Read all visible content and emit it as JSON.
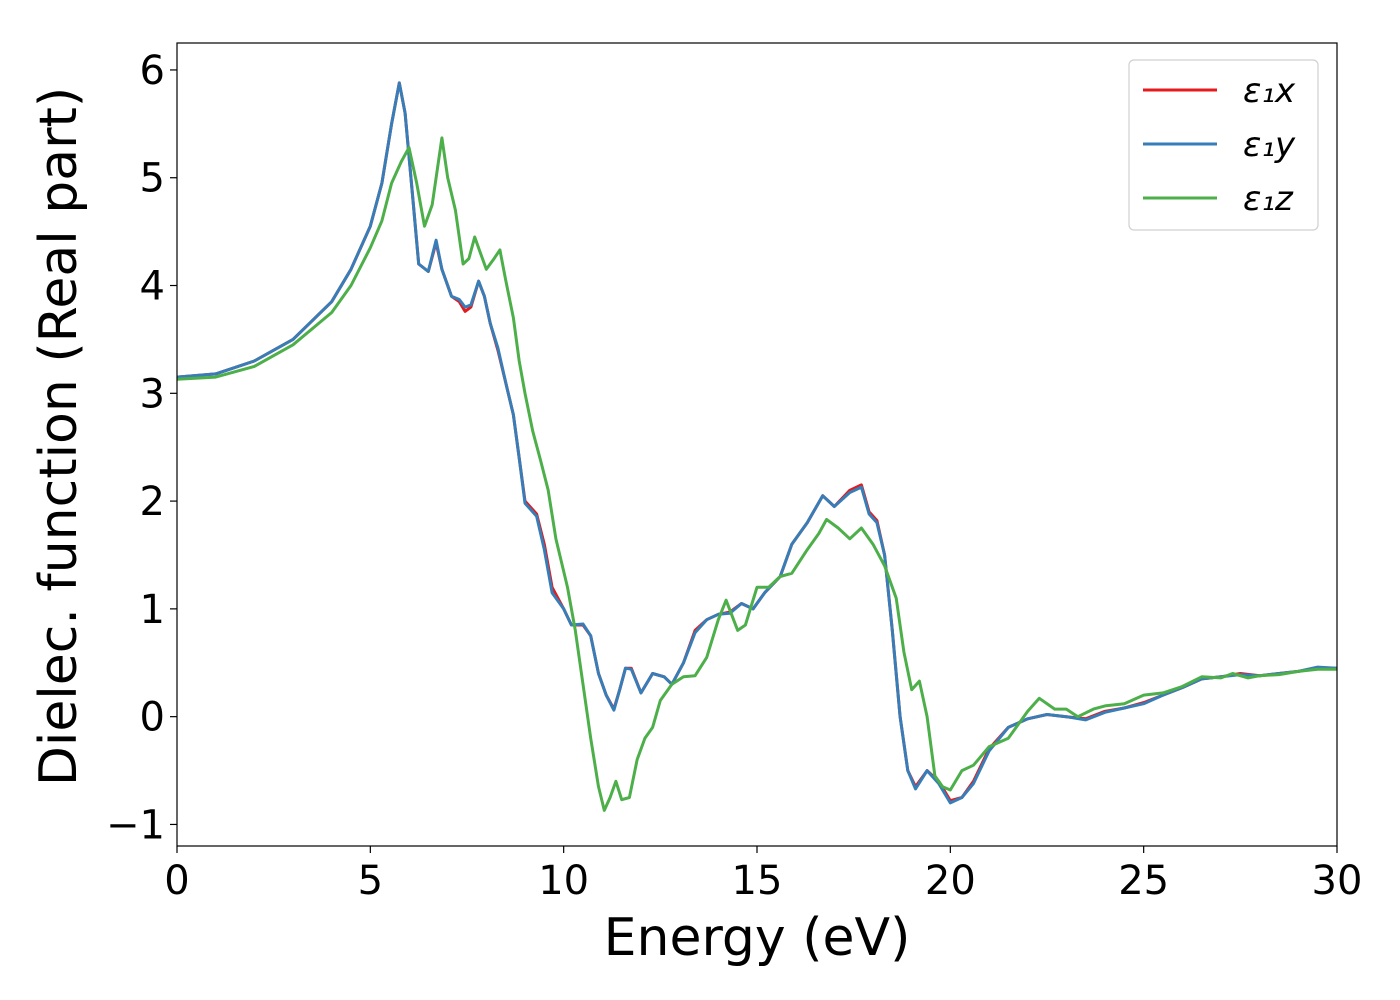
{
  "chart_data": {
    "type": "line",
    "xlabel": "Energy (eV)",
    "ylabel": "Dielec. function (Real part)",
    "xlim": [
      0,
      30
    ],
    "ylim": [
      -1.2,
      6.25
    ],
    "xticks": [
      0,
      5,
      10,
      15,
      20,
      25,
      30
    ],
    "xtick_labels": [
      "0",
      "5",
      "10",
      "15",
      "20",
      "25",
      "30"
    ],
    "yticks": [
      -1,
      0,
      1,
      2,
      3,
      4,
      5,
      6
    ],
    "ytick_labels": [
      "−1",
      "0",
      "1",
      "2",
      "3",
      "4",
      "5",
      "6"
    ],
    "grid": false,
    "legend_position": "top-right",
    "series": [
      {
        "name": "ε₁x",
        "color": "#e41a1c",
        "points": [
          [
            0,
            3.15
          ],
          [
            1,
            3.18
          ],
          [
            2,
            3.3
          ],
          [
            3,
            3.5
          ],
          [
            4,
            3.85
          ],
          [
            4.5,
            4.15
          ],
          [
            5,
            4.55
          ],
          [
            5.3,
            4.95
          ],
          [
            5.55,
            5.5
          ],
          [
            5.75,
            5.88
          ],
          [
            5.9,
            5.6
          ],
          [
            6.1,
            4.8
          ],
          [
            6.25,
            4.2
          ],
          [
            6.5,
            4.13
          ],
          [
            6.7,
            4.4
          ],
          [
            6.85,
            4.15
          ],
          [
            7.1,
            3.9
          ],
          [
            7.3,
            3.85
          ],
          [
            7.45,
            3.76
          ],
          [
            7.6,
            3.8
          ],
          [
            7.8,
            4.04
          ],
          [
            7.95,
            3.9
          ],
          [
            8.1,
            3.65
          ],
          [
            8.3,
            3.4
          ],
          [
            8.5,
            3.1
          ],
          [
            8.7,
            2.8
          ],
          [
            8.85,
            2.4
          ],
          [
            9.0,
            2.0
          ],
          [
            9.3,
            1.88
          ],
          [
            9.5,
            1.6
          ],
          [
            9.7,
            1.2
          ],
          [
            10.0,
            1.0
          ],
          [
            10.2,
            0.85
          ],
          [
            10.5,
            0.85
          ],
          [
            10.7,
            0.75
          ],
          [
            10.9,
            0.4
          ],
          [
            11.1,
            0.2
          ],
          [
            11.3,
            0.07
          ],
          [
            11.45,
            0.25
          ],
          [
            11.6,
            0.45
          ],
          [
            11.75,
            0.45
          ],
          [
            12.0,
            0.22
          ],
          [
            12.3,
            0.4
          ],
          [
            12.6,
            0.37
          ],
          [
            12.8,
            0.3
          ],
          [
            13.1,
            0.5
          ],
          [
            13.4,
            0.8
          ],
          [
            13.7,
            0.9
          ],
          [
            14.0,
            0.95
          ],
          [
            14.3,
            0.97
          ],
          [
            14.6,
            1.05
          ],
          [
            14.9,
            1.0
          ],
          [
            15.2,
            1.15
          ],
          [
            15.6,
            1.3
          ],
          [
            15.9,
            1.6
          ],
          [
            16.3,
            1.8
          ],
          [
            16.7,
            2.05
          ],
          [
            17.0,
            1.95
          ],
          [
            17.4,
            2.1
          ],
          [
            17.7,
            2.15
          ],
          [
            17.9,
            1.9
          ],
          [
            18.1,
            1.82
          ],
          [
            18.3,
            1.5
          ],
          [
            18.5,
            0.8
          ],
          [
            18.7,
            0.0
          ],
          [
            18.9,
            -0.5
          ],
          [
            19.1,
            -0.65
          ],
          [
            19.4,
            -0.5
          ],
          [
            19.7,
            -0.6
          ],
          [
            20.0,
            -0.78
          ],
          [
            20.3,
            -0.75
          ],
          [
            20.6,
            -0.6
          ],
          [
            21.0,
            -0.3
          ],
          [
            21.5,
            -0.1
          ],
          [
            22.0,
            -0.02
          ],
          [
            22.5,
            0.02
          ],
          [
            23.0,
            0.0
          ],
          [
            23.5,
            -0.02
          ],
          [
            24.0,
            0.05
          ],
          [
            24.5,
            0.08
          ],
          [
            25.0,
            0.13
          ],
          [
            25.5,
            0.2
          ],
          [
            26.0,
            0.27
          ],
          [
            26.5,
            0.35
          ],
          [
            27.0,
            0.37
          ],
          [
            27.5,
            0.4
          ],
          [
            28.0,
            0.38
          ],
          [
            28.5,
            0.4
          ],
          [
            29.0,
            0.42
          ],
          [
            29.5,
            0.45
          ],
          [
            30.0,
            0.45
          ]
        ]
      },
      {
        "name": "ε₁y",
        "color": "#377eb8",
        "points": [
          [
            0,
            3.15
          ],
          [
            1,
            3.18
          ],
          [
            2,
            3.3
          ],
          [
            3,
            3.5
          ],
          [
            4,
            3.85
          ],
          [
            4.5,
            4.15
          ],
          [
            5,
            4.55
          ],
          [
            5.3,
            4.95
          ],
          [
            5.55,
            5.5
          ],
          [
            5.75,
            5.88
          ],
          [
            5.9,
            5.6
          ],
          [
            6.1,
            4.8
          ],
          [
            6.25,
            4.2
          ],
          [
            6.5,
            4.13
          ],
          [
            6.7,
            4.42
          ],
          [
            6.85,
            4.15
          ],
          [
            7.1,
            3.9
          ],
          [
            7.3,
            3.87
          ],
          [
            7.45,
            3.8
          ],
          [
            7.6,
            3.82
          ],
          [
            7.8,
            4.04
          ],
          [
            7.95,
            3.9
          ],
          [
            8.1,
            3.65
          ],
          [
            8.3,
            3.42
          ],
          [
            8.5,
            3.1
          ],
          [
            8.7,
            2.8
          ],
          [
            8.85,
            2.4
          ],
          [
            9.0,
            1.98
          ],
          [
            9.3,
            1.86
          ],
          [
            9.5,
            1.55
          ],
          [
            9.7,
            1.15
          ],
          [
            10.0,
            1.0
          ],
          [
            10.2,
            0.85
          ],
          [
            10.5,
            0.86
          ],
          [
            10.7,
            0.75
          ],
          [
            10.9,
            0.4
          ],
          [
            11.1,
            0.2
          ],
          [
            11.3,
            0.06
          ],
          [
            11.45,
            0.25
          ],
          [
            11.6,
            0.45
          ],
          [
            11.75,
            0.44
          ],
          [
            12.0,
            0.22
          ],
          [
            12.3,
            0.4
          ],
          [
            12.6,
            0.37
          ],
          [
            12.8,
            0.3
          ],
          [
            13.1,
            0.5
          ],
          [
            13.4,
            0.78
          ],
          [
            13.7,
            0.9
          ],
          [
            14.0,
            0.95
          ],
          [
            14.3,
            0.96
          ],
          [
            14.6,
            1.05
          ],
          [
            14.9,
            1.0
          ],
          [
            15.2,
            1.15
          ],
          [
            15.6,
            1.3
          ],
          [
            15.9,
            1.6
          ],
          [
            16.3,
            1.8
          ],
          [
            16.7,
            2.05
          ],
          [
            17.0,
            1.95
          ],
          [
            17.4,
            2.08
          ],
          [
            17.7,
            2.13
          ],
          [
            17.9,
            1.88
          ],
          [
            18.1,
            1.8
          ],
          [
            18.3,
            1.5
          ],
          [
            18.5,
            0.8
          ],
          [
            18.7,
            0.0
          ],
          [
            18.9,
            -0.5
          ],
          [
            19.1,
            -0.67
          ],
          [
            19.4,
            -0.5
          ],
          [
            19.7,
            -0.62
          ],
          [
            20.0,
            -0.8
          ],
          [
            20.3,
            -0.75
          ],
          [
            20.6,
            -0.62
          ],
          [
            21.0,
            -0.32
          ],
          [
            21.5,
            -0.1
          ],
          [
            22.0,
            -0.02
          ],
          [
            22.5,
            0.02
          ],
          [
            23.0,
            0.0
          ],
          [
            23.5,
            -0.03
          ],
          [
            24.0,
            0.04
          ],
          [
            24.5,
            0.08
          ],
          [
            25.0,
            0.12
          ],
          [
            25.5,
            0.2
          ],
          [
            26.0,
            0.27
          ],
          [
            26.5,
            0.35
          ],
          [
            27.0,
            0.37
          ],
          [
            27.5,
            0.39
          ],
          [
            28.0,
            0.38
          ],
          [
            28.5,
            0.4
          ],
          [
            29.0,
            0.42
          ],
          [
            29.5,
            0.46
          ],
          [
            30.0,
            0.45
          ]
        ]
      },
      {
        "name": "ε₁z",
        "color": "#4daf4a",
        "points": [
          [
            0,
            3.13
          ],
          [
            1,
            3.15
          ],
          [
            2,
            3.25
          ],
          [
            3,
            3.45
          ],
          [
            4,
            3.75
          ],
          [
            4.5,
            4.0
          ],
          [
            5,
            4.35
          ],
          [
            5.3,
            4.6
          ],
          [
            5.55,
            4.95
          ],
          [
            5.8,
            5.15
          ],
          [
            6.0,
            5.28
          ],
          [
            6.2,
            4.95
          ],
          [
            6.4,
            4.55
          ],
          [
            6.6,
            4.75
          ],
          [
            6.85,
            5.37
          ],
          [
            7.0,
            5.0
          ],
          [
            7.2,
            4.7
          ],
          [
            7.4,
            4.2
          ],
          [
            7.55,
            4.25
          ],
          [
            7.7,
            4.45
          ],
          [
            7.85,
            4.3
          ],
          [
            8.0,
            4.15
          ],
          [
            8.2,
            4.25
          ],
          [
            8.35,
            4.33
          ],
          [
            8.5,
            4.05
          ],
          [
            8.7,
            3.7
          ],
          [
            8.85,
            3.3
          ],
          [
            9.0,
            3.0
          ],
          [
            9.2,
            2.65
          ],
          [
            9.4,
            2.38
          ],
          [
            9.6,
            2.1
          ],
          [
            9.8,
            1.65
          ],
          [
            10.1,
            1.2
          ],
          [
            10.3,
            0.8
          ],
          [
            10.5,
            0.3
          ],
          [
            10.7,
            -0.2
          ],
          [
            10.9,
            -0.65
          ],
          [
            11.05,
            -0.87
          ],
          [
            11.2,
            -0.75
          ],
          [
            11.35,
            -0.6
          ],
          [
            11.5,
            -0.77
          ],
          [
            11.7,
            -0.75
          ],
          [
            11.9,
            -0.4
          ],
          [
            12.1,
            -0.2
          ],
          [
            12.3,
            -0.1
          ],
          [
            12.5,
            0.15
          ],
          [
            12.8,
            0.3
          ],
          [
            13.1,
            0.37
          ],
          [
            13.4,
            0.38
          ],
          [
            13.7,
            0.55
          ],
          [
            14.0,
            0.9
          ],
          [
            14.2,
            1.08
          ],
          [
            14.5,
            0.8
          ],
          [
            14.7,
            0.85
          ],
          [
            15.0,
            1.2
          ],
          [
            15.3,
            1.2
          ],
          [
            15.6,
            1.3
          ],
          [
            15.9,
            1.33
          ],
          [
            16.3,
            1.55
          ],
          [
            16.6,
            1.7
          ],
          [
            16.8,
            1.83
          ],
          [
            17.1,
            1.75
          ],
          [
            17.4,
            1.65
          ],
          [
            17.7,
            1.75
          ],
          [
            18.0,
            1.6
          ],
          [
            18.3,
            1.4
          ],
          [
            18.6,
            1.1
          ],
          [
            18.8,
            0.6
          ],
          [
            19.0,
            0.25
          ],
          [
            19.2,
            0.33
          ],
          [
            19.4,
            0.0
          ],
          [
            19.6,
            -0.55
          ],
          [
            19.8,
            -0.65
          ],
          [
            20.0,
            -0.68
          ],
          [
            20.3,
            -0.5
          ],
          [
            20.6,
            -0.45
          ],
          [
            21.0,
            -0.28
          ],
          [
            21.5,
            -0.2
          ],
          [
            22.0,
            0.05
          ],
          [
            22.3,
            0.17
          ],
          [
            22.7,
            0.07
          ],
          [
            23.0,
            0.07
          ],
          [
            23.3,
            0.0
          ],
          [
            23.7,
            0.07
          ],
          [
            24.0,
            0.1
          ],
          [
            24.5,
            0.12
          ],
          [
            25.0,
            0.2
          ],
          [
            25.5,
            0.22
          ],
          [
            26.0,
            0.28
          ],
          [
            26.5,
            0.37
          ],
          [
            27.0,
            0.36
          ],
          [
            27.3,
            0.4
          ],
          [
            27.7,
            0.36
          ],
          [
            28.0,
            0.38
          ],
          [
            28.5,
            0.39
          ],
          [
            29.0,
            0.42
          ],
          [
            29.5,
            0.44
          ],
          [
            30.0,
            0.44
          ]
        ]
      }
    ]
  }
}
